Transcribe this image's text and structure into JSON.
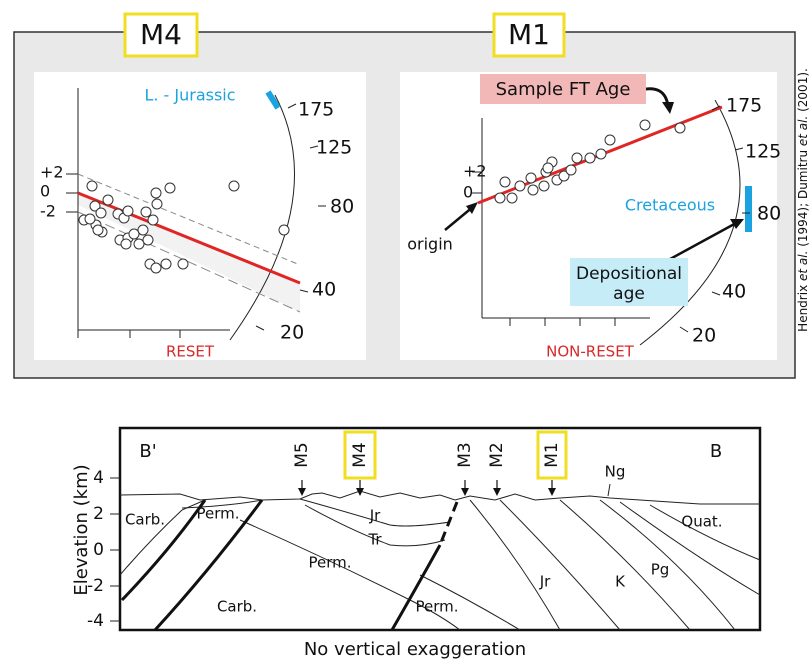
{
  "top_panel": {
    "credit": [
      "Hendrix ",
      "et al.",
      " (1994); Dumitru ",
      "et al.",
      " (2001)."
    ],
    "left": {
      "label": "M4",
      "annotation": "L. - Jurassic",
      "y_ticks": [
        "+2",
        "0",
        "-2"
      ],
      "age_ticks": [
        "175",
        "125",
        "80",
        "40",
        "20"
      ],
      "caption": "RESET"
    },
    "right": {
      "label": "M1",
      "sample_label": "Sample FT Age",
      "period": "Cretaceous",
      "origin": "origin",
      "depositional": [
        "Depositional",
        "age"
      ],
      "y_ticks": [
        "+2",
        "0"
      ],
      "age_ticks": [
        "175",
        "125",
        "80",
        "40",
        "20"
      ],
      "caption": "NON-RESET"
    }
  },
  "cross_section": {
    "y_label": "Elevation (km)",
    "y_ticks": [
      "4",
      "2",
      "0",
      "-2",
      "-4"
    ],
    "ends": [
      "B'",
      "B"
    ],
    "wells": [
      "M5",
      "M4",
      "M3",
      "M2",
      "M1"
    ],
    "units": [
      "Carb.",
      "Perm.",
      "Jr",
      "Tr",
      "Perm.",
      "Carb.",
      "Perm.",
      "Jr",
      "K",
      "Pg",
      "Quat.",
      "Ng"
    ],
    "caption": "No vertical exaggeration"
  }
}
